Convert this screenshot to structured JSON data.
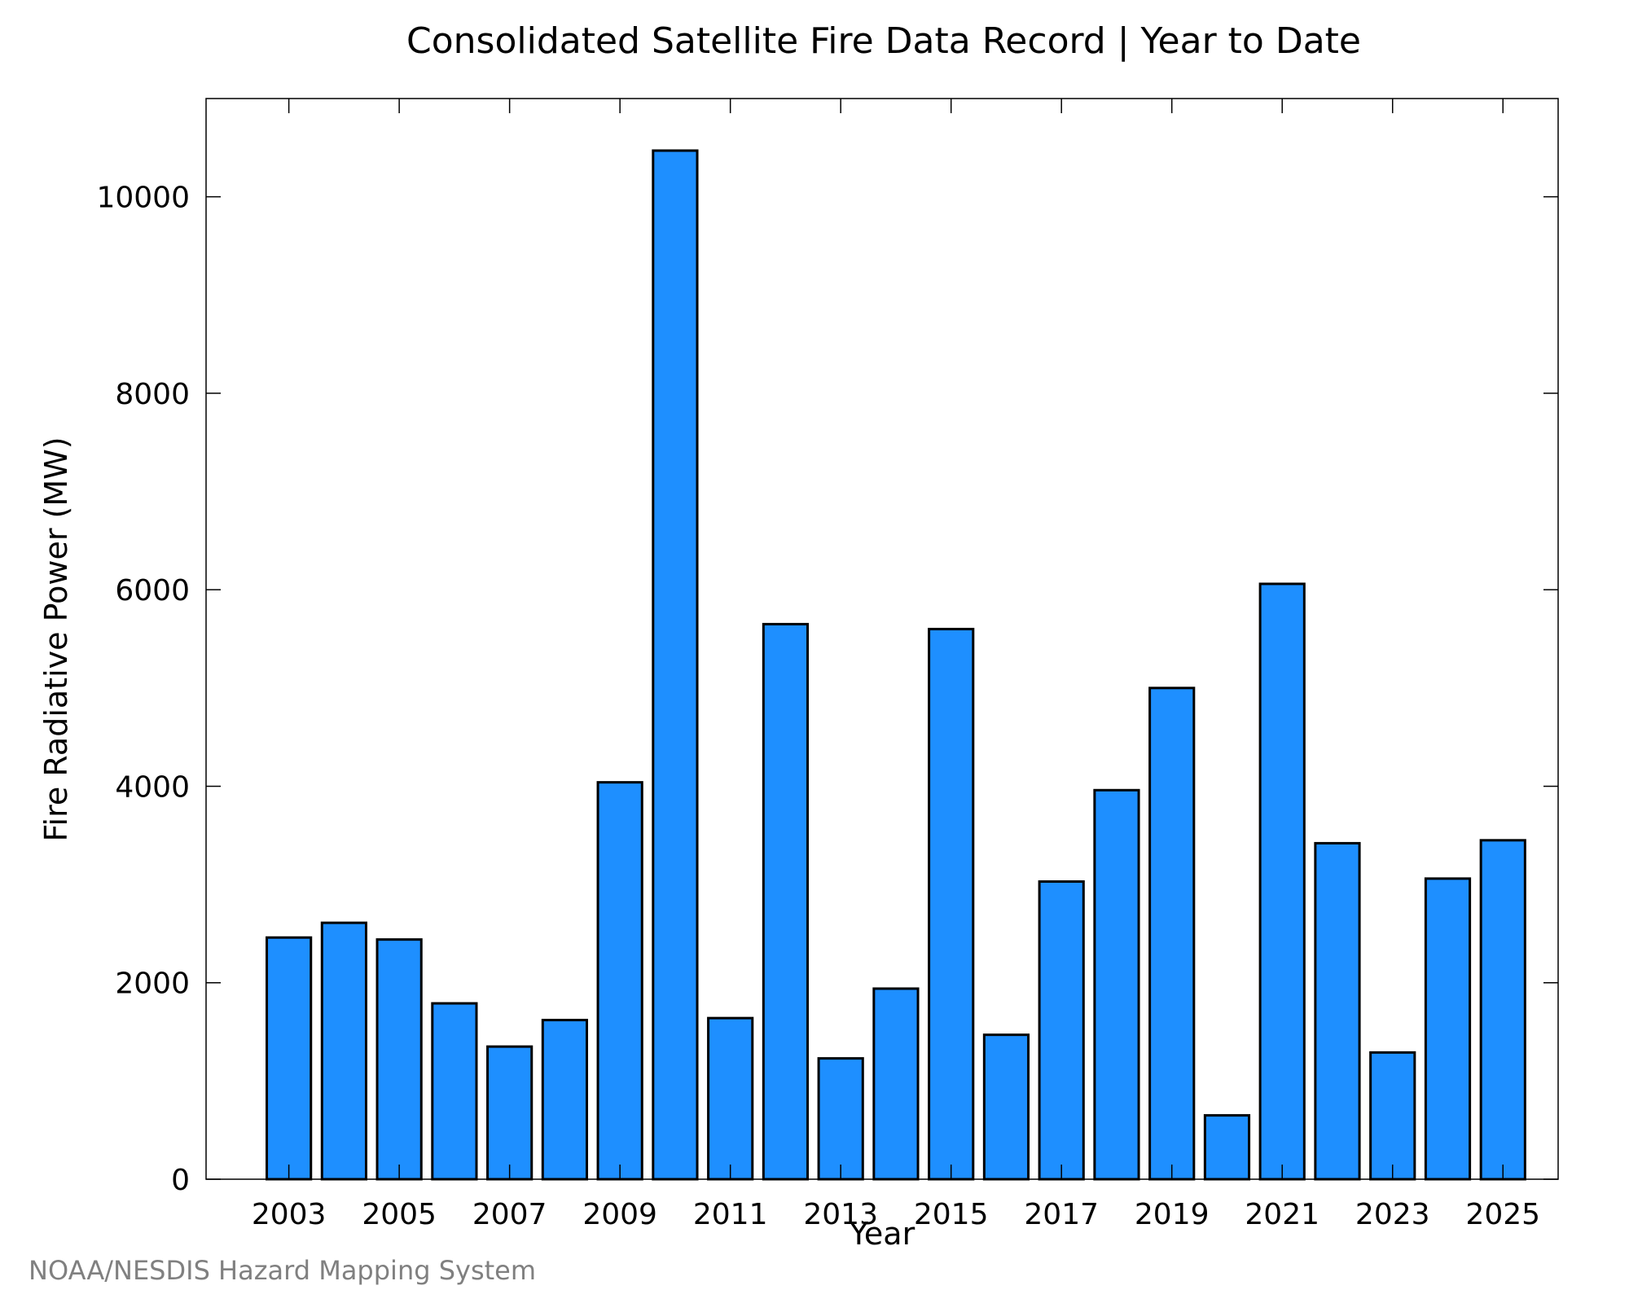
{
  "chart_data": {
    "type": "bar",
    "title": "Consolidated Satellite Fire Data Record | Year to Date",
    "xlabel": "Year",
    "ylabel": "Fire Radiative Power (MW)",
    "ylim": [
      0,
      11000
    ],
    "yticks": [
      0,
      2000,
      4000,
      6000,
      8000,
      10000
    ],
    "xticks": [
      2003,
      2005,
      2007,
      2009,
      2011,
      2013,
      2015,
      2017,
      2019,
      2021,
      2023,
      2025
    ],
    "categories": [
      2003,
      2004,
      2005,
      2006,
      2007,
      2008,
      2009,
      2010,
      2011,
      2012,
      2013,
      2014,
      2015,
      2016,
      2017,
      2018,
      2019,
      2020,
      2021,
      2022,
      2023,
      2024,
      2025
    ],
    "values": [
      2460,
      2610,
      2440,
      1790,
      1350,
      1620,
      4040,
      10470,
      1640,
      5650,
      1230,
      1940,
      5600,
      1470,
      3030,
      3960,
      5000,
      650,
      6060,
      3420,
      1290,
      3060,
      3450
    ],
    "grid": false,
    "bar_color": "#1e8fff"
  },
  "footer": "NOAA/NESDIS Hazard Mapping System"
}
